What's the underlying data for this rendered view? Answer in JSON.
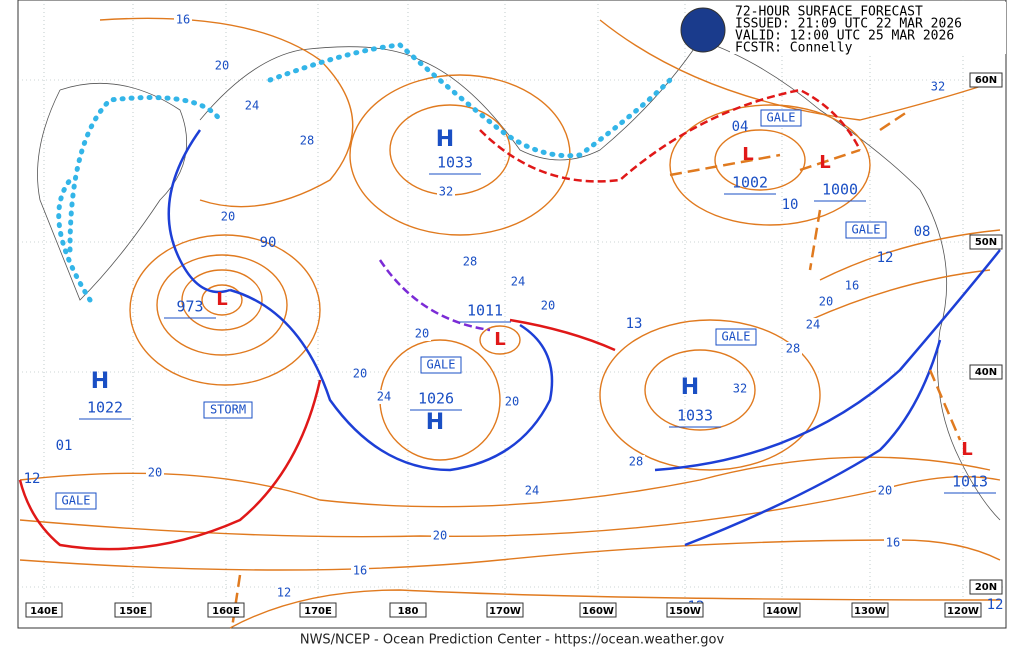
{
  "header": {
    "title": "72-HOUR SURFACE FORECAST",
    "issued": "ISSUED: 21:09 UTC 22 MAR 2026",
    "valid": "VALID:  12:00 UTC 25 MAR 2026",
    "forecaster": "FCSTR:  Connelly"
  },
  "centers": [
    {
      "symbol": "H",
      "pressure": "1033"
    },
    {
      "symbol": "L",
      "pressure": "973"
    },
    {
      "symbol": "H",
      "pressure": "1022"
    },
    {
      "symbol": "H",
      "pressure": "1026"
    },
    {
      "symbol": "L",
      "pressure": "1011"
    },
    {
      "symbol": "H",
      "pressure": "1033"
    },
    {
      "symbol": "L",
      "pressure": "1002"
    },
    {
      "symbol": "L",
      "pressure": "1000"
    },
    {
      "symbol": "L",
      "pressure": "1013"
    }
  ],
  "center_labels": [
    "90",
    "13",
    "01",
    "04",
    "10",
    "08",
    "12",
    "12",
    "12",
    "12"
  ],
  "isobar_labels": [
    "16",
    "20",
    "24",
    "28",
    "32",
    "20",
    "28",
    "24",
    "20",
    "20",
    "20",
    "24",
    "20",
    "32",
    "28",
    "24",
    "20",
    "20",
    "16",
    "12",
    "16",
    "20",
    "24",
    "28",
    "20",
    "16",
    "32"
  ],
  "warnings": [
    "GALE",
    "GALE",
    "GALE",
    "GALE",
    "GALE",
    "STORM"
  ],
  "longitudes": [
    "140E",
    "150E",
    "160E",
    "170E",
    "180",
    "170W",
    "160W",
    "150W",
    "140W",
    "130W",
    "120W"
  ],
  "latitudes": [
    "60N",
    "50N",
    "40N",
    "20N"
  ],
  "footer": "NWS/NCEP - Ocean Prediction Center - https://ocean.weather.gov"
}
